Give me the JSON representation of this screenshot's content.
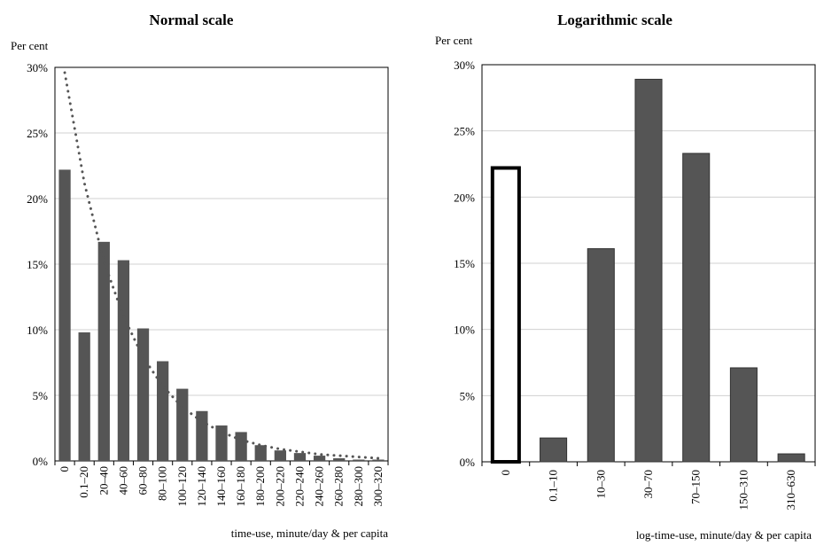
{
  "chart_data": [
    {
      "type": "bar",
      "title": "Normal scale",
      "ylabel": "Per cent",
      "xlabel": "time-use, minute/day & per capita",
      "ylim": [
        0,
        30
      ],
      "yticks": [
        "0%",
        "5%",
        "10%",
        "15%",
        "20%",
        "25%",
        "30%"
      ],
      "grid": true,
      "categories": [
        "0",
        "0.1–20",
        "20–40",
        "40–60",
        "60–80",
        "80–100",
        "100–120",
        "120–140",
        "140–160",
        "160–180",
        "180–200",
        "200–220",
        "220–240",
        "240–260",
        "260–280",
        "280–300",
        "300–320"
      ],
      "values": [
        22.2,
        9.8,
        16.7,
        15.3,
        10.1,
        7.6,
        5.5,
        3.8,
        2.7,
        2.2,
        1.2,
        0.8,
        0.6,
        0.4,
        0.2,
        0.1,
        0.1
      ],
      "trend": [
        29.6,
        21.2,
        15.2,
        11.0,
        7.9,
        5.7,
        4.1,
        3.0,
        2.2,
        1.6,
        1.2,
        0.9,
        0.7,
        0.5,
        0.4,
        0.3,
        0.2
      ],
      "colors": {
        "bar": "#555555",
        "trend": "#555555"
      }
    },
    {
      "type": "bar",
      "title": "Logarithmic scale",
      "ylabel": "Per cent",
      "xlabel": "log-time-use, minute/day & per capita",
      "ylim": [
        0,
        30
      ],
      "yticks": [
        "0%",
        "5%",
        "10%",
        "15%",
        "20%",
        "25%",
        "30%"
      ],
      "grid": true,
      "categories": [
        "0",
        "0.1–10",
        "10–30",
        "30–70",
        "70–150",
        "150–310",
        "310–630"
      ],
      "values": [
        22.2,
        1.8,
        16.1,
        28.9,
        23.3,
        7.1,
        0.6
      ],
      "hollow_first_bar": true,
      "colors": {
        "bar": "#555555",
        "hollow_outline": "#000000"
      }
    }
  ]
}
